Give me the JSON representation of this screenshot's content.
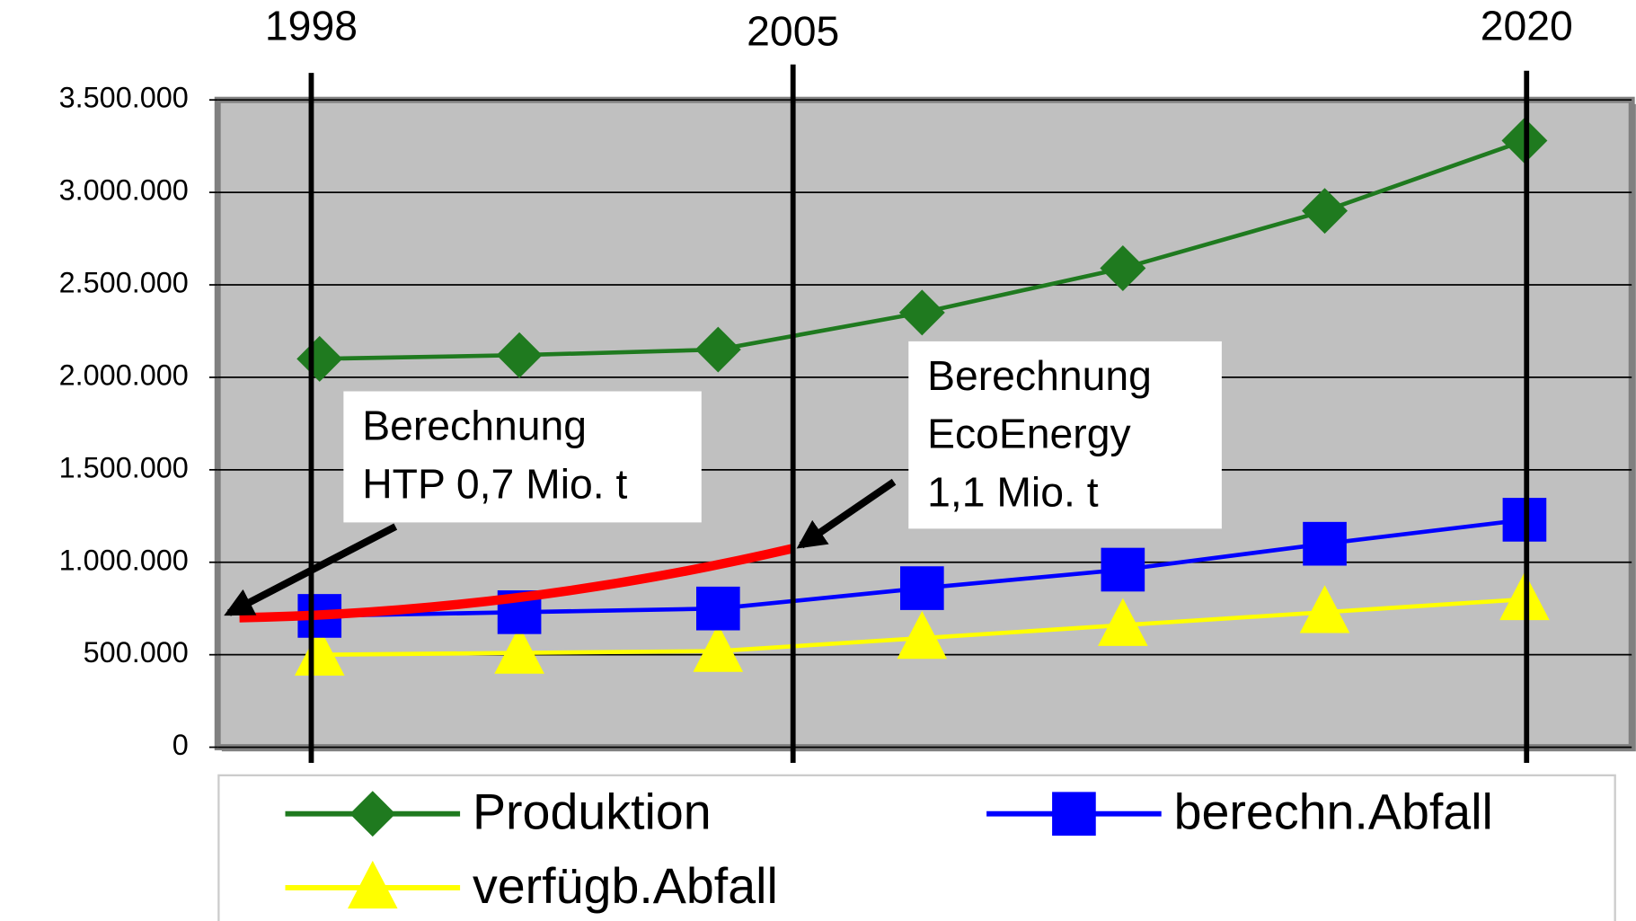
{
  "chart_data": {
    "type": "line",
    "categories": [
      null,
      null,
      null,
      null,
      null,
      null,
      null
    ],
    "series": [
      {
        "name": "Produktion",
        "color": "#1f7a1f",
        "marker": "diamond",
        "values": [
          2100000,
          2120000,
          2150000,
          2350000,
          2590000,
          2900000,
          3280000
        ]
      },
      {
        "name": "berechn.Abfall",
        "color": "#0000ff",
        "marker": "square",
        "values": [
          710000,
          730000,
          750000,
          860000,
          960000,
          1100000,
          1230000
        ]
      },
      {
        "name": "verfügb.Abfall",
        "color": "#ffff00",
        "marker": "triangle",
        "values": [
          500000,
          510000,
          520000,
          590000,
          660000,
          730000,
          800000
        ]
      }
    ],
    "highlight": {
      "color": "#ff0000",
      "values": [
        700000,
        1075000
      ]
    },
    "ylim": [
      0,
      3500000
    ],
    "yticks": [
      0,
      {
        "value": 500000,
        "label": "500.000"
      },
      {
        "value": 1000000,
        "label": "1.000.000"
      },
      {
        "value": 1500000,
        "label": "1.500.000"
      },
      {
        "value": 2000000,
        "label": "2.000.000"
      },
      {
        "value": 2500000,
        "label": "2.500.000"
      },
      {
        "value": 3000000,
        "label": "3.000.000"
      },
      {
        "value": 3500000,
        "label": "3.500.000"
      }
    ],
    "grid": true,
    "plot_background": "#c0c0c0",
    "year_markers": [
      "1998",
      "2005",
      "2020"
    ],
    "callouts": [
      {
        "lines": [
          "Berechnung",
          "HTP 0,7 Mio. t"
        ]
      },
      {
        "lines": [
          "Berechnung",
          "EcoEnergy",
          "1,1 Mio. t"
        ]
      }
    ],
    "legend": "bottom"
  }
}
